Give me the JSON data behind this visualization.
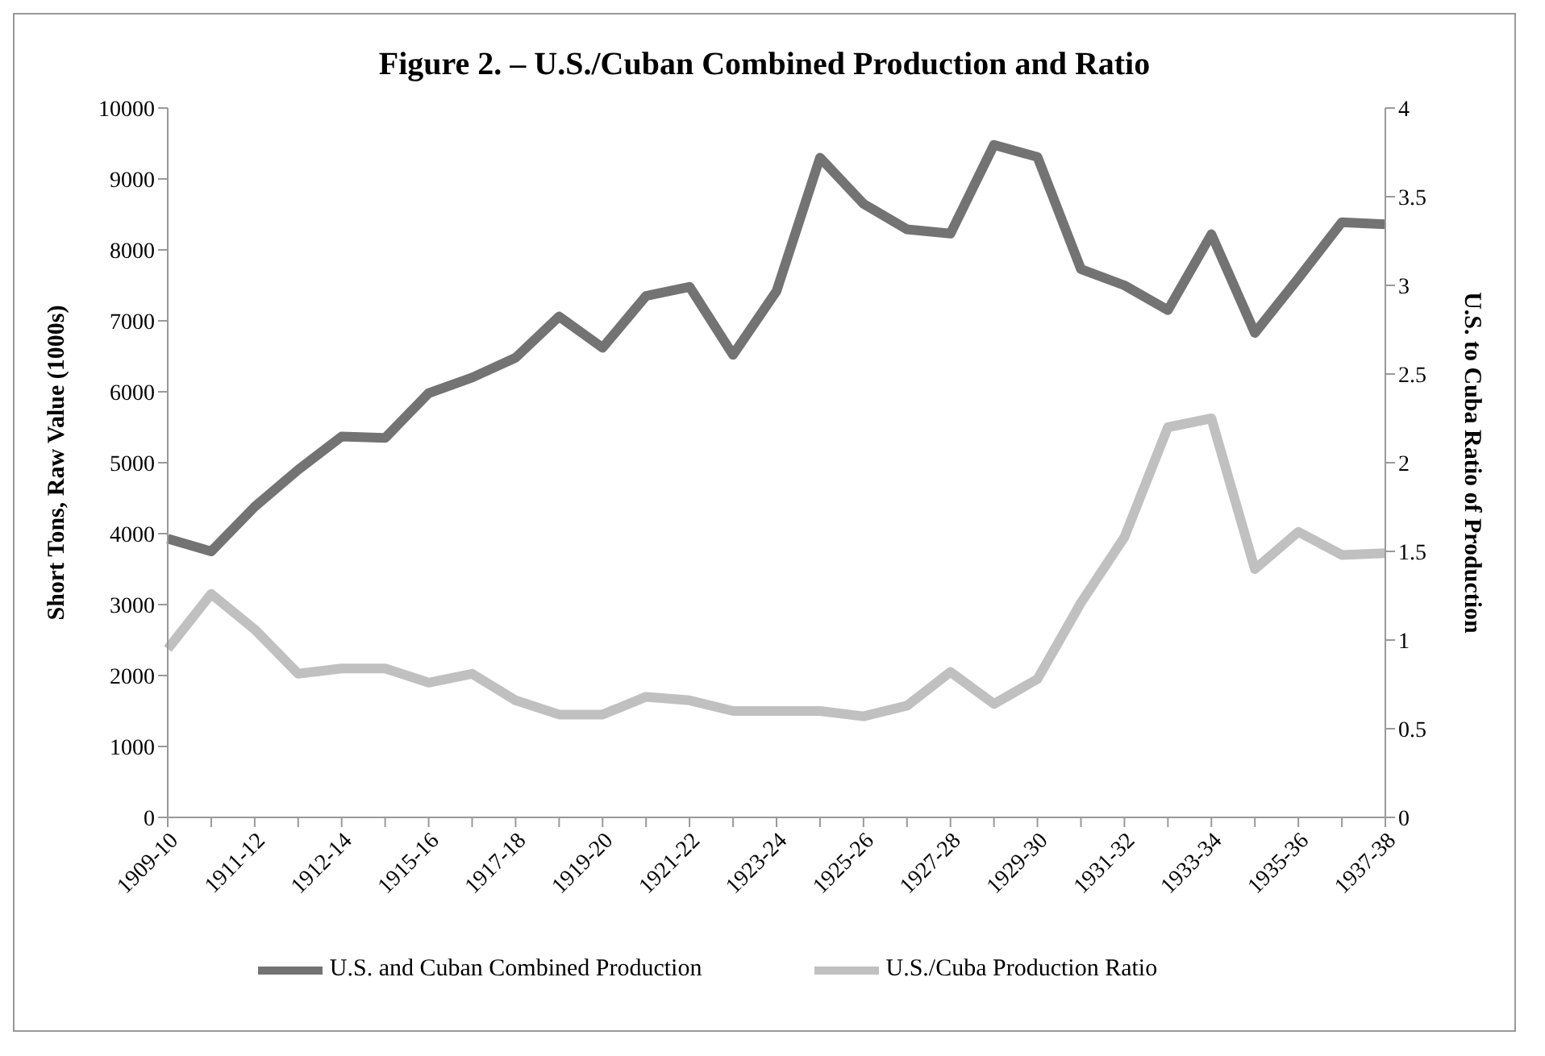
{
  "chart_data": {
    "type": "line",
    "title": "Figure 2. – U.S./Cuban Combined Production and Ratio",
    "ylabel": "Short Tons, Raw Value (1000s)",
    "y2label": "U.S. to Cuba Ratio of Production",
    "categories": [
      "1909-10",
      null,
      "1911-12",
      null,
      "1912-14",
      null,
      "1915-16",
      null,
      "1917-18",
      null,
      "1919-20",
      null,
      "1921-22",
      null,
      "1923-24",
      null,
      "1925-26",
      null,
      "1927-28",
      null,
      "1929-30",
      null,
      "1931-32",
      null,
      "1933-34",
      null,
      "1935-36",
      null,
      "1937-38"
    ],
    "series": [
      {
        "name": "U.S. and Cuban Combined Production",
        "color": "#737373",
        "values": [
          3930,
          3750,
          4380,
          4900,
          5370,
          5350,
          5980,
          6200,
          6480,
          7060,
          6620,
          7350,
          7480,
          6520,
          7420,
          9300,
          8650,
          8290,
          8230,
          9480,
          9310,
          7730,
          7500,
          7150,
          8220,
          6830,
          7600,
          8390,
          8360
        ]
      },
      {
        "name": "U.S./Cuba Production Ratio",
        "color": "#c0c0c0",
        "axis": "y2",
        "values": [
          0.95,
          1.26,
          1.06,
          0.81,
          0.84,
          0.84,
          0.76,
          0.81,
          0.66,
          0.58,
          0.58,
          0.68,
          0.66,
          0.6,
          0.6,
          0.6,
          0.57,
          0.63,
          0.82,
          0.64,
          0.78,
          1.21,
          1.58,
          2.2,
          2.25,
          1.4,
          1.61,
          1.48,
          1.49
        ]
      }
    ],
    "ylim": [
      0,
      10000
    ],
    "yticks": [
      0,
      1000,
      2000,
      3000,
      4000,
      5000,
      6000,
      7000,
      8000,
      9000,
      10000
    ],
    "y2lim": [
      0,
      4
    ],
    "y2ticks": [
      0,
      0.5,
      1,
      1.5,
      2,
      2.5,
      3,
      3.5,
      4
    ],
    "legend": "bottom",
    "marker": "none",
    "line_style": "solid"
  }
}
